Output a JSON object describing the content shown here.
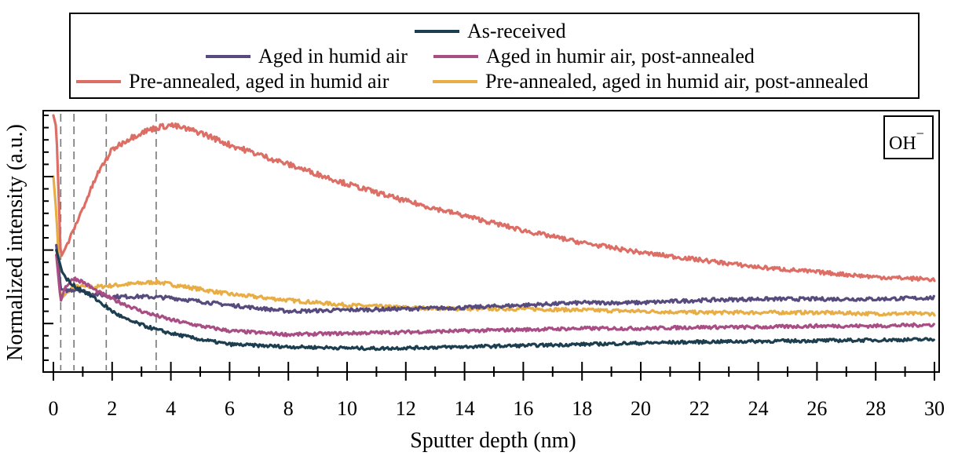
{
  "chart_data": {
    "type": "line",
    "title": "",
    "xlabel": "Sputter depth (nm)",
    "ylabel": "Normalized intensity (a.u.)",
    "xlim": [
      -0.1,
      30
    ],
    "ylim": [
      0,
      1
    ],
    "x_ticks": [
      "0",
      "2",
      "4",
      "6",
      "8",
      "10",
      "12",
      "14",
      "16",
      "18",
      "20",
      "22",
      "24",
      "26",
      "28",
      "30"
    ],
    "y_tick_labels_shown": false,
    "grid": false,
    "legend_position": "top-outside",
    "annotation": {
      "text": "OH",
      "superscript": "−",
      "position": "top-right"
    },
    "vertical_reference_lines": [
      0.25,
      0.7,
      1.8,
      3.5
    ],
    "series": [
      {
        "name": "As-received",
        "color": "#1c3e4f",
        "x": [
          0.1,
          0.3,
          0.6,
          1.0,
          1.5,
          2.0,
          2.5,
          3.0,
          3.5,
          4.0,
          5.0,
          6.0,
          7.0,
          8.0,
          10.0,
          11.0,
          14.0,
          18.0,
          22.0,
          26.0,
          30.0
        ],
        "y": [
          0.45,
          0.36,
          0.31,
          0.285,
          0.245,
          0.2,
          0.165,
          0.145,
          0.125,
          0.11,
          0.085,
          0.065,
          0.06,
          0.055,
          0.05,
          0.048,
          0.055,
          0.065,
          0.075,
          0.08,
          0.085
        ]
      },
      {
        "name": "Aged in humid air",
        "color": "#574a7d",
        "x": [
          0.1,
          0.25,
          0.5,
          0.8,
          1.2,
          2.0,
          3.0,
          4.0,
          6.0,
          8.0,
          10.0,
          12.0,
          14.0,
          16.0,
          18.0,
          20.0,
          22.0,
          24.0,
          26.0,
          28.0,
          30.0
        ],
        "y": [
          0.47,
          0.29,
          0.285,
          0.29,
          0.275,
          0.26,
          0.26,
          0.255,
          0.225,
          0.2,
          0.205,
          0.21,
          0.215,
          0.225,
          0.235,
          0.235,
          0.245,
          0.25,
          0.25,
          0.25,
          0.255
        ]
      },
      {
        "name": "Aged in humir air, post-annealed",
        "color": "#a84e85",
        "x": [
          0.1,
          0.25,
          0.4,
          0.7,
          1.0,
          1.5,
          2.0,
          3.0,
          4.0,
          5.0,
          6.0,
          8.0,
          10.0,
          12.0,
          14.0,
          16.0,
          18.0,
          20.0,
          22.0,
          24.0,
          26.0,
          28.0,
          30.0
        ],
        "y": [
          0.43,
          0.24,
          0.3,
          0.335,
          0.32,
          0.28,
          0.25,
          0.2,
          0.165,
          0.14,
          0.12,
          0.105,
          0.11,
          0.115,
          0.12,
          0.125,
          0.13,
          0.13,
          0.135,
          0.135,
          0.14,
          0.14,
          0.145
        ]
      },
      {
        "name": "Pre-annealed, aged in humid air",
        "color": "#dd6e66",
        "x": [
          0.0,
          0.1,
          0.25,
          0.5,
          1.0,
          1.5,
          2.0,
          2.5,
          3.0,
          3.5,
          4.0,
          5.0,
          6.0,
          8.0,
          10.0,
          12.0,
          14.0,
          16.0,
          18.0,
          20.0,
          22.0,
          24.0,
          26.0,
          28.0,
          30.0
        ],
        "y": [
          1.0,
          0.95,
          0.42,
          0.48,
          0.62,
          0.76,
          0.86,
          0.9,
          0.93,
          0.95,
          0.96,
          0.93,
          0.88,
          0.8,
          0.72,
          0.65,
          0.59,
          0.53,
          0.48,
          0.44,
          0.41,
          0.38,
          0.36,
          0.34,
          0.33
        ]
      },
      {
        "name": "Pre-annealed, aged in humid air, post-annealed",
        "color": "#e8ad45",
        "x": [
          0.0,
          0.1,
          0.25,
          0.5,
          0.7,
          1.0,
          1.5,
          2.0,
          3.0,
          3.5,
          4.0,
          5.0,
          6.0,
          8.0,
          10.0,
          12.0,
          14.0,
          16.0,
          18.0,
          20.0,
          22.0,
          24.0,
          26.0,
          28.0,
          30.0
        ],
        "y": [
          0.75,
          0.6,
          0.25,
          0.28,
          0.3,
          0.3,
          0.3,
          0.305,
          0.315,
          0.32,
          0.31,
          0.29,
          0.27,
          0.245,
          0.225,
          0.215,
          0.21,
          0.21,
          0.205,
          0.2,
          0.195,
          0.195,
          0.195,
          0.19,
          0.19
        ]
      }
    ]
  }
}
